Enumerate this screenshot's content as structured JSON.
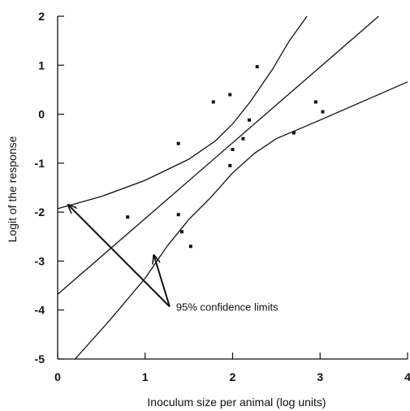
{
  "chart_data": {
    "type": "scatter",
    "title": "",
    "xlabel": "Inoculum size per animal (log units)",
    "ylabel": "Logit of the response",
    "xlim": [
      0,
      4
    ],
    "ylim": [
      -5,
      2
    ],
    "x_ticks": [
      "0",
      "1",
      "2",
      "3",
      "4"
    ],
    "y_ticks": [
      "2",
      "1",
      "0",
      "-1",
      "-2",
      "-3",
      "-4",
      "-5"
    ],
    "grid": false,
    "series": [
      {
        "type": "scatter",
        "points": [
          [
            0.8,
            -2.1
          ],
          [
            1.38,
            -0.6
          ],
          [
            1.38,
            -2.05
          ],
          [
            1.42,
            -2.4
          ],
          [
            1.52,
            -2.7
          ],
          [
            1.78,
            0.25
          ],
          [
            1.97,
            0.4
          ],
          [
            2.0,
            -0.72
          ],
          [
            1.97,
            -1.05
          ],
          [
            2.12,
            -0.5
          ],
          [
            2.19,
            -0.12
          ],
          [
            2.28,
            0.97
          ],
          [
            2.7,
            -0.38
          ],
          [
            2.95,
            0.25
          ],
          [
            3.03,
            0.05
          ]
        ]
      },
      {
        "type": "line",
        "points": [
          [
            0.0,
            -3.68
          ],
          [
            3.67,
            2.0
          ]
        ]
      },
      {
        "type": "line",
        "points": [
          [
            0.0,
            -1.93
          ],
          [
            0.5,
            -1.68
          ],
          [
            1.0,
            -1.35
          ],
          [
            1.5,
            -0.92
          ],
          [
            1.8,
            -0.55
          ],
          [
            2.0,
            -0.2
          ],
          [
            2.2,
            0.25
          ],
          [
            2.45,
            0.9
          ],
          [
            2.65,
            1.5
          ],
          [
            2.85,
            2.0
          ]
        ]
      },
      {
        "type": "line",
        "points": [
          [
            0.2,
            -5.0
          ],
          [
            0.6,
            -4.2
          ],
          [
            1.0,
            -3.35
          ],
          [
            1.25,
            -2.7
          ],
          [
            1.5,
            -2.15
          ],
          [
            1.75,
            -1.7
          ],
          [
            2.0,
            -1.2
          ],
          [
            2.25,
            -0.8
          ],
          [
            2.5,
            -0.5
          ],
          [
            3.0,
            -0.12
          ],
          [
            3.5,
            0.27
          ],
          [
            4.0,
            0.66
          ]
        ]
      }
    ],
    "annotations": [
      {
        "text": "95% confidence limits",
        "anchor": [
          1.28,
          -3.93
        ],
        "arrows_to": [
          [
            0.12,
            -1.85
          ],
          [
            1.1,
            -2.88
          ]
        ]
      }
    ]
  }
}
